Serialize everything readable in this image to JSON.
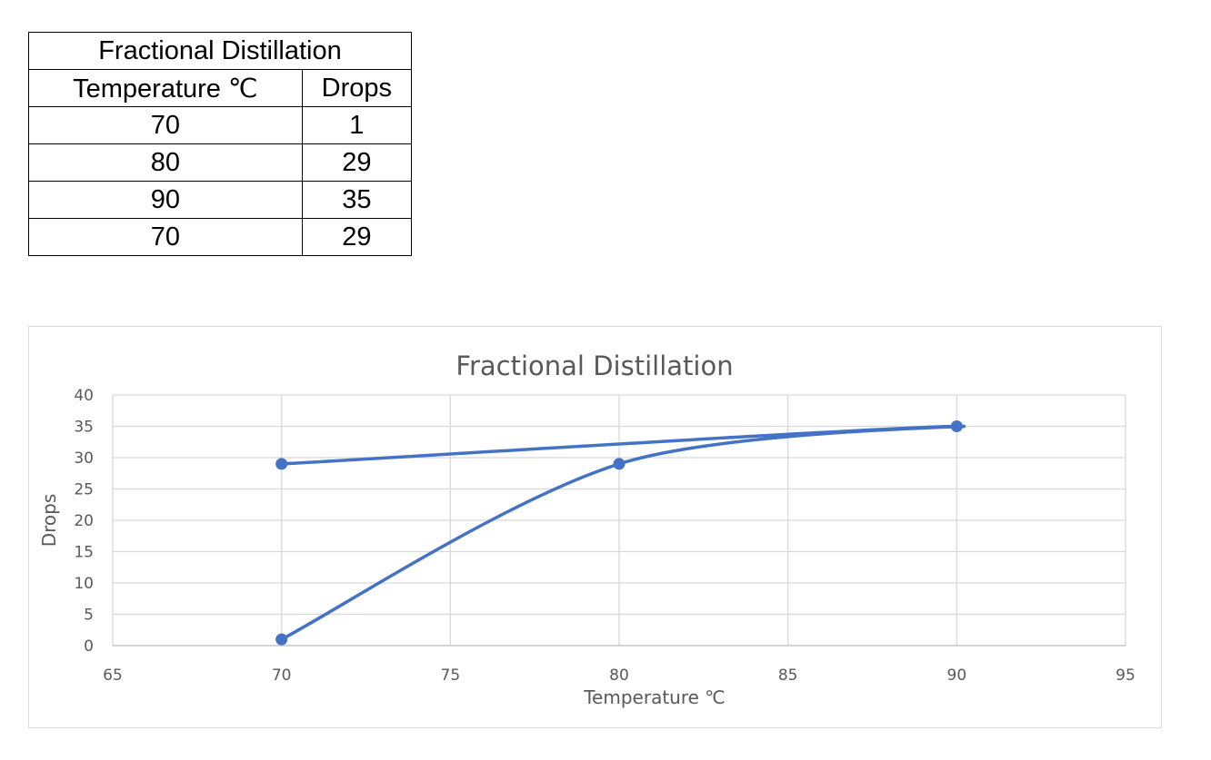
{
  "table": {
    "title": "Fractional Distillation",
    "headers": [
      "Temperature ℃",
      "Drops"
    ],
    "rows": [
      [
        "70",
        "1"
      ],
      [
        "80",
        "29"
      ],
      [
        "90",
        "35"
      ],
      [
        "70",
        "29"
      ]
    ]
  },
  "chart_data": {
    "type": "scatter",
    "title": "Fractional Distillation",
    "xlabel": "Temperature ℃",
    "ylabel": "Drops",
    "xlim": [
      65,
      95
    ],
    "ylim": [
      0,
      40
    ],
    "xticks": [
      65,
      70,
      75,
      80,
      85,
      90,
      95
    ],
    "yticks": [
      0,
      5,
      10,
      15,
      20,
      25,
      30,
      35,
      40
    ],
    "grid": true,
    "smooth_lines": true,
    "series": [
      {
        "x": [
          70,
          80,
          90,
          70
        ],
        "y": [
          1,
          29,
          35,
          29
        ],
        "color": "#4472c4"
      }
    ]
  }
}
